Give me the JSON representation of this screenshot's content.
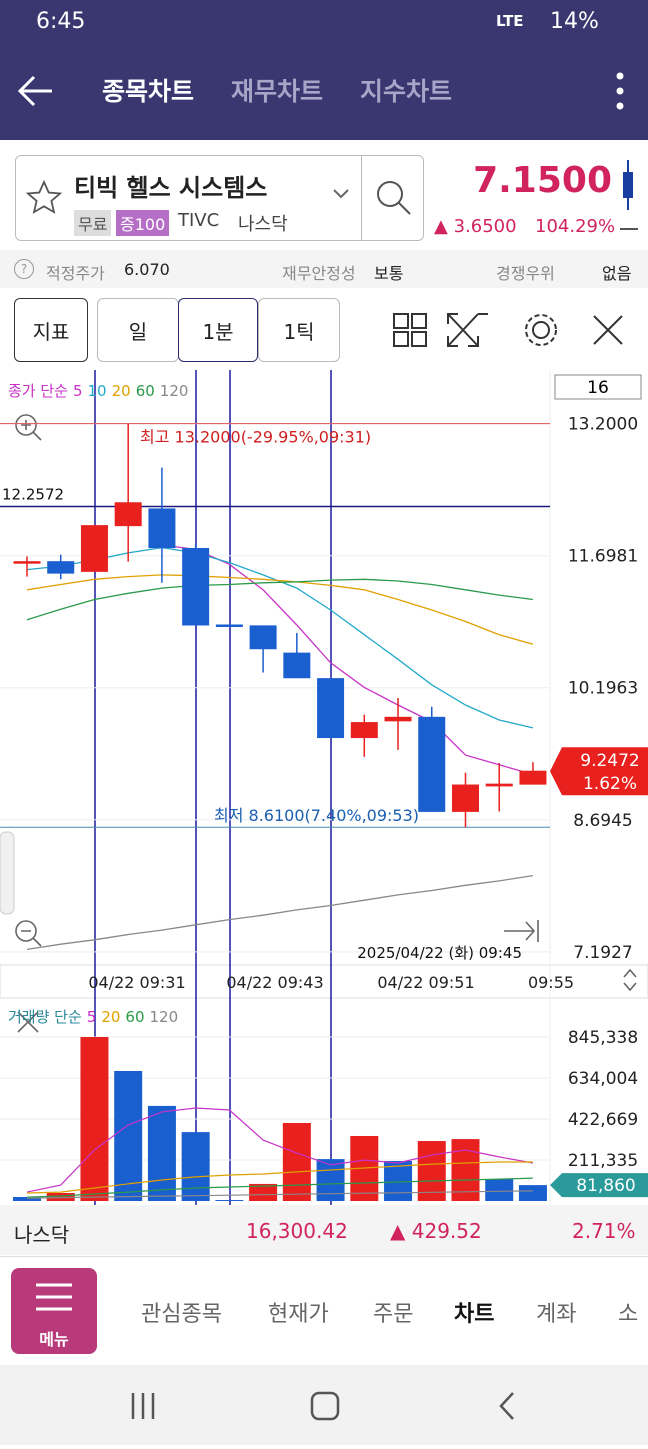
{
  "status_bar": {
    "time": "6:45",
    "network": "LTE",
    "battery": "14%"
  },
  "header": {
    "tabs": [
      "종목차트",
      "재무차트",
      "지수차트"
    ]
  },
  "stock": {
    "name": "티빅 헬스 시스템스",
    "tags": [
      "무료",
      "증100"
    ],
    "ticker": "TIVC",
    "market": "나스닥",
    "price": "7.1500",
    "change": "3.6500",
    "change_pct": "104.29%"
  },
  "info": {
    "fair_price_label": "적정주가",
    "fair_price": "6.070",
    "stability_label": "재무안정성",
    "stability": "보통",
    "moat_label": "경쟁우위",
    "moat": "없음"
  },
  "toolbar": {
    "indicator": "지표",
    "periods": [
      "일",
      "1분",
      "1틱"
    ]
  },
  "chart_data": [
    {
      "type": "candlestick",
      "legend_title": "종가 단순",
      "period_count": 16,
      "open": [
        11.62,
        11.63,
        11.52,
        12.04,
        12.23,
        11.78,
        10.91,
        10.9,
        10.59,
        10.3,
        9.63,
        9.82,
        9.86,
        8.79,
        9.08,
        9.1
      ],
      "high": [
        11.69,
        11.71,
        12.04,
        13.2,
        12.7,
        11.83,
        10.91,
        10.9,
        10.82,
        10.3,
        9.89,
        10.08,
        9.98,
        9.23,
        9.34,
        9.35
      ],
      "low": [
        11.46,
        11.43,
        11.52,
        11.63,
        11.39,
        10.91,
        10.91,
        10.37,
        10.31,
        9.63,
        9.41,
        9.49,
        8.79,
        8.61,
        8.79,
        9.1
      ],
      "close": [
        11.63,
        11.5,
        12.04,
        12.3,
        11.79,
        10.91,
        10.91,
        10.64,
        10.31,
        9.63,
        9.8,
        9.86,
        8.79,
        9.09,
        9.1,
        9.2472
      ],
      "up_color": "#e8201e",
      "down_color": "#1a5fd0",
      "series": [
        {
          "name": "5",
          "color": "#c832c8",
          "values": [
            null,
            null,
            null,
            null,
            11.82,
            11.77,
            11.6,
            11.31,
            10.91,
            10.48,
            10.2,
            10.0,
            9.81,
            9.43,
            9.32,
            9.21
          ]
        },
        {
          "name": "10",
          "color": "#22a9c9",
          "values": [
            11.54,
            11.58,
            11.65,
            11.73,
            11.79,
            11.73,
            11.62,
            11.48,
            11.33,
            11.08,
            10.8,
            10.52,
            10.23,
            10.0,
            9.83,
            9.74
          ]
        },
        {
          "name": "20",
          "color": "#e0a000",
          "values": [
            11.31,
            11.37,
            11.43,
            11.46,
            11.48,
            11.47,
            11.45,
            11.43,
            11.4,
            11.36,
            11.31,
            11.2,
            11.08,
            10.95,
            10.8,
            10.69
          ]
        },
        {
          "name": "60",
          "color": "#2a9a4a",
          "values": [
            10.97,
            11.09,
            11.2,
            11.27,
            11.33,
            11.36,
            11.37,
            11.39,
            11.4,
            11.42,
            11.43,
            11.41,
            11.37,
            11.31,
            11.25,
            11.2
          ]
        },
        {
          "name": "120",
          "color": "#888888",
          "values": [
            7.22,
            7.28,
            7.33,
            7.39,
            7.44,
            7.5,
            7.56,
            7.61,
            7.67,
            7.72,
            7.78,
            7.84,
            7.89,
            7.95,
            8.0,
            8.06
          ]
        }
      ],
      "ylim": [
        7.1,
        13.81
      ],
      "yticks": [
        {
          "value": 13.2,
          "label": "13.2000"
        },
        {
          "value": 11.6981,
          "label": "11.6981"
        },
        {
          "value": 10.1963,
          "label": "10.1963"
        },
        {
          "value": 8.6945,
          "label": "8.6945"
        },
        {
          "value": 7.1927,
          "label": "7.1927"
        }
      ],
      "high_marker": {
        "value": 13.2,
        "label": "최고 13.2000(-29.95%,09:31)"
      },
      "low_marker": {
        "value": 8.61,
        "label": "최저 8.6100(7.40%,09:53)"
      },
      "crosshair": {
        "value": 12.2572,
        "label": "12.2572"
      },
      "last_label": "9.2472",
      "last_change": "1.62%",
      "cursor_label": "2025/04/22 (화) 09:45",
      "xtick_labels": [
        "04/22 09:31",
        "04/22 09:43",
        "04/22 09:51",
        "09:55"
      ]
    },
    {
      "type": "bar",
      "legend_title": "거래량 단순",
      "values": [
        20600,
        41200,
        845000,
        670000,
        490000,
        355000,
        5000,
        88000,
        402000,
        216000,
        335000,
        206000,
        309000,
        319000,
        113000,
        81860
      ],
      "colors": [
        "#1a5fd0",
        "#e8201e",
        "#e8201e",
        "#1a5fd0",
        "#1a5fd0",
        "#1a5fd0",
        "#1a5fd0",
        "#e8201e",
        "#e8201e",
        "#1a5fd0",
        "#e8201e",
        "#1a5fd0",
        "#e8201e",
        "#e8201e",
        "#1a5fd0",
        "#1a5fd0"
      ],
      "series": [
        {
          "name": "5",
          "color": "#c832c8",
          "values": [
            46000,
            82000,
            263000,
            392000,
            459000,
            479000,
            469000,
            314000,
            247000,
            186000,
            211000,
            196000,
            237000,
            263000,
            227000,
            196000
          ]
        },
        {
          "name": "20",
          "color": "#e0a000",
          "values": [
            41000,
            46000,
            67000,
            88000,
            108000,
            124000,
            134000,
            139000,
            150000,
            160000,
            170000,
            180000,
            190000,
            196000,
            201000,
            201000
          ]
        },
        {
          "name": "60",
          "color": "#2a9a4a",
          "values": [
            20000,
            26000,
            36000,
            46000,
            57000,
            67000,
            72000,
            77000,
            82000,
            88000,
            93000,
            98000,
            103000,
            108000,
            113000,
            118000
          ]
        },
        {
          "name": "120",
          "color": "#888888",
          "values": [
            15000,
            17500,
            20000,
            22500,
            25000,
            27500,
            30000,
            32500,
            35000,
            37500,
            40000,
            42500,
            45000,
            47500,
            50000,
            52000
          ]
        }
      ],
      "ylim": [
        0,
        1010000
      ],
      "yticks": [
        {
          "value": 845338,
          "label": "845,338"
        },
        {
          "value": 634004,
          "label": "634,004"
        },
        {
          "value": 422669,
          "label": "422,669"
        },
        {
          "value": 211335,
          "label": "211,335"
        }
      ],
      "last_label": "81,860"
    }
  ],
  "index_bar": {
    "name": "나스닥",
    "value": "16,300.42",
    "change": "429.52",
    "change_pct": "2.71%"
  },
  "bottom_nav": {
    "menu": "메뉴",
    "items": [
      "관심종목",
      "현재가",
      "주문",
      "차트",
      "계좌",
      "소"
    ]
  }
}
